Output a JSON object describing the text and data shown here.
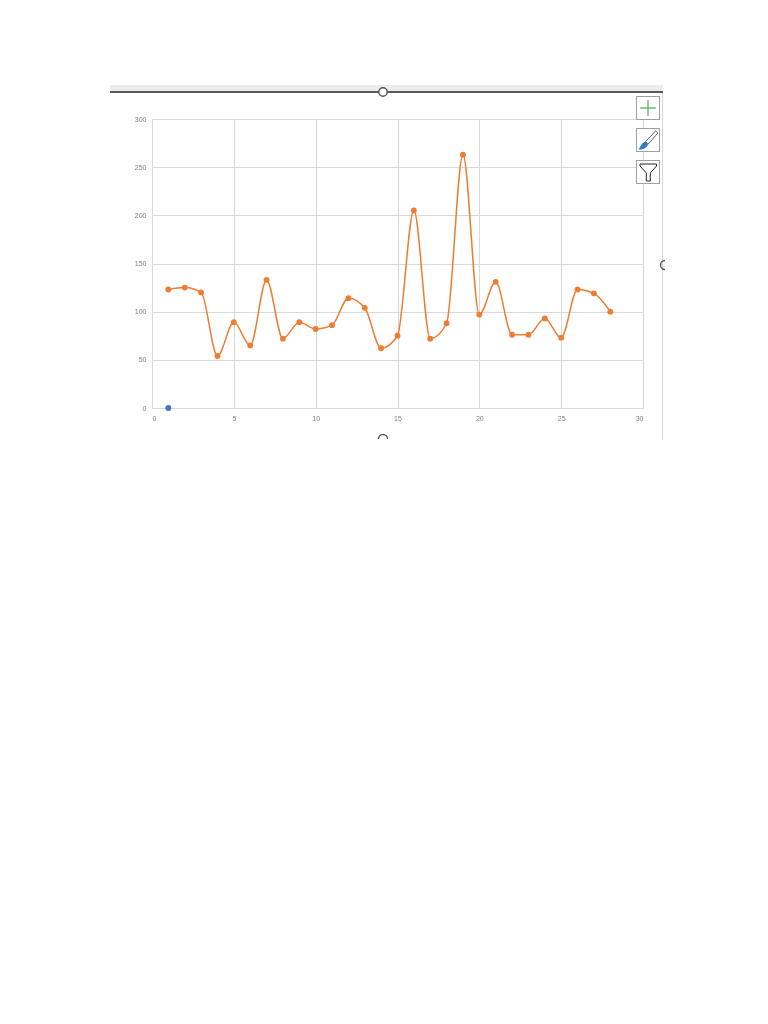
{
  "chart_data": {
    "type": "line",
    "xlim": [
      0,
      30
    ],
    "xticks": [
      0,
      5,
      10,
      15,
      20,
      25,
      30
    ],
    "ylim": [
      0,
      300
    ],
    "yticks": [
      0,
      50,
      100,
      150,
      200,
      250,
      300
    ],
    "grid": true,
    "marker": "circle",
    "line_style": "solid",
    "series": [
      {
        "type": "line",
        "color": "#ed7d31",
        "x": [
          1,
          2,
          3,
          4,
          5,
          6,
          7,
          8,
          9,
          10,
          11,
          12,
          13,
          14,
          15,
          16,
          17,
          18,
          19,
          20,
          21,
          22,
          23,
          24,
          25,
          26,
          27,
          28
        ],
        "values": [
          123,
          125,
          120,
          54,
          89,
          65,
          133,
          72,
          89,
          82,
          86,
          114,
          104,
          62,
          75,
          205,
          72,
          88,
          263,
          97,
          131,
          76,
          76,
          93,
          73,
          123,
          119,
          100
        ]
      },
      {
        "type": "scatter",
        "color": "#4472c4",
        "x": [
          1
        ],
        "values": [
          0
        ]
      }
    ]
  }
}
